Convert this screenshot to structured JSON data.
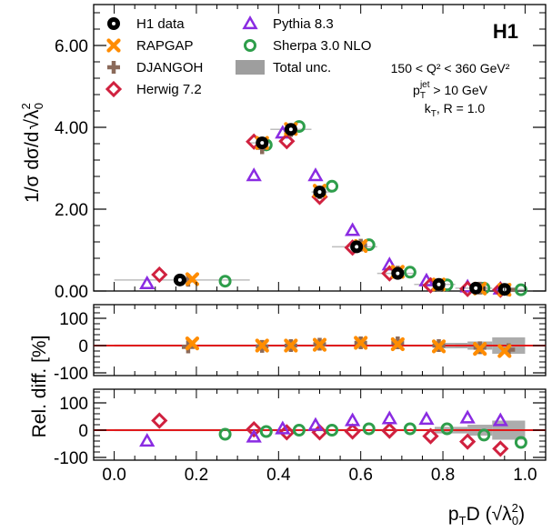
{
  "chart_data": {
    "type": "scatter",
    "experiment_label": "H1",
    "xlabel_main": "p",
    "xlabel_sub": "T",
    "xlabel_rest": "D (",
    "xlabel_sqrt": "λ",
    "xlabel_sqrt_sup": "2",
    "xlabel_sqrt_sub": "0",
    "xlabel_close": ")",
    "ylabel_main": "1/σ dσ/d",
    "ylabel_sqrt": "λ",
    "ylabel_sqrt_sup": "2",
    "ylabel_sqrt_sub": "0",
    "ratio_ylabel": "Rel. diff. [%]",
    "cuts": {
      "line1": "150 < Q² < 360 GeV²",
      "line2_p": "p",
      "line2_sub": "T",
      "line2_sup": "jet",
      "line2_rest": " > 10 GeV",
      "line3": "k",
      "line3_sub": "T",
      "line3_rest": ", R = 1.0"
    },
    "xlim": [
      -0.05,
      1.05
    ],
    "xticks": [
      "0.0",
      "0.2",
      "0.4",
      "0.6",
      "0.8",
      "1.0"
    ],
    "xtick_values": [
      0.0,
      0.2,
      0.4,
      0.6,
      0.8,
      1.0
    ],
    "main": {
      "ylim": [
        0,
        7.0
      ],
      "yticks": [
        "0.00",
        "2.00",
        "4.00",
        "6.00"
      ],
      "ytick_values": [
        0,
        2,
        4,
        6
      ]
    },
    "ratio1": {
      "ylim": [
        -110,
        150
      ],
      "yticks": [
        "-100",
        "0",
        "100"
      ],
      "ytick_values": [
        -100,
        0,
        100
      ],
      "band_x": [
        0.78,
        0.86,
        0.92,
        1.0
      ],
      "band_lo": [
        -10,
        -15,
        -30
      ],
      "band_hi": [
        10,
        15,
        30
      ]
    },
    "ratio2": {
      "ylim": [
        -110,
        150
      ],
      "yticks": [
        "-100",
        "0",
        "100"
      ],
      "ytick_values": [
        -100,
        0,
        100
      ],
      "band_x": [
        0.78,
        0.86,
        0.92,
        1.0
      ],
      "band_lo": [
        -12,
        -20,
        -35
      ],
      "band_hi": [
        12,
        20,
        35
      ]
    },
    "data_bins": [
      0.0,
      0.33,
      0.38,
      0.48,
      0.53,
      0.64,
      0.73,
      0.83,
      0.92,
      1.0
    ],
    "series": [
      {
        "name": "H1 data",
        "marker": "circle-filled",
        "color": "#000000",
        "x": [
          0.16,
          0.36,
          0.43,
          0.5,
          0.59,
          0.69,
          0.79,
          0.88,
          0.95
        ],
        "y": [
          0.27,
          3.62,
          3.95,
          2.42,
          1.08,
          0.43,
          0.16,
          0.07,
          0.04
        ],
        "xerr": [
          [
            0.0,
            0.33
          ],
          [
            0.33,
            0.38
          ],
          [
            0.38,
            0.48
          ],
          [
            0.48,
            0.53
          ],
          [
            0.53,
            0.64
          ],
          [
            0.64,
            0.73
          ],
          [
            0.73,
            0.83
          ],
          [
            0.83,
            0.92
          ],
          [
            0.92,
            1.0
          ]
        ]
      },
      {
        "name": "RAPGAP",
        "marker": "cross",
        "color": "#ff8c00",
        "x": [
          0.19,
          0.36,
          0.43,
          0.5,
          0.6,
          0.69,
          0.79,
          0.89,
          0.95
        ],
        "y": [
          0.29,
          3.62,
          3.96,
          2.45,
          1.1,
          0.47,
          0.16,
          0.06,
          0.03
        ],
        "ratio": [
          8,
          0,
          0,
          3,
          10,
          5,
          -3,
          -12,
          -20
        ]
      },
      {
        "name": "DJANGOH",
        "marker": "plus-thick",
        "color": "#8b6a5a",
        "x": [
          0.18,
          0.36,
          0.43,
          0.5,
          0.6,
          0.69,
          0.79,
          0.89,
          0.96
        ],
        "y": [
          0.26,
          3.5,
          3.92,
          2.4,
          1.12,
          0.46,
          0.15,
          0.07,
          0.03
        ],
        "ratio": [
          -5,
          -3,
          0,
          5,
          10,
          10,
          0,
          -8,
          -15
        ]
      },
      {
        "name": "Herwig 7.2",
        "marker": "diamond-open",
        "color": "#d0213f",
        "x": [
          0.11,
          0.34,
          0.42,
          0.5,
          0.58,
          0.67,
          0.77,
          0.86,
          0.94
        ],
        "y": [
          0.4,
          3.65,
          3.66,
          2.3,
          1.06,
          0.43,
          0.14,
          0.05,
          0.03
        ],
        "ratio": [
          35,
          3,
          -8,
          -8,
          -5,
          -2,
          -22,
          -42,
          -68
        ]
      },
      {
        "name": "Pythia 8.3",
        "marker": "triangle-open",
        "color": "#8a2be2",
        "x": [
          0.08,
          0.34,
          0.41,
          0.49,
          0.58,
          0.67,
          0.76,
          0.86,
          0.94
        ],
        "y": [
          0.18,
          2.82,
          3.86,
          2.82,
          1.48,
          0.64,
          0.25,
          0.1,
          0.05
        ],
        "ratio": [
          -40,
          -25,
          5,
          18,
          35,
          42,
          40,
          45,
          35
        ]
      },
      {
        "name": "Sherpa 3.0 NLO",
        "marker": "circle-open",
        "color": "#2e9e4b",
        "x": [
          0.27,
          0.37,
          0.45,
          0.53,
          0.62,
          0.72,
          0.81,
          0.9,
          0.99
        ],
        "y": [
          0.24,
          3.57,
          4.02,
          2.56,
          1.13,
          0.46,
          0.15,
          0.07,
          0.03
        ],
        "ratio": [
          -15,
          -5,
          0,
          0,
          5,
          5,
          5,
          -18,
          -45
        ]
      }
    ],
    "legend_total_unc": "Total unc."
  }
}
